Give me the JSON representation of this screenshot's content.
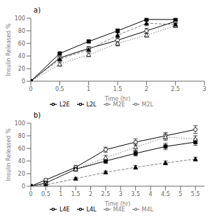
{
  "chart_data": [
    {
      "type": "line",
      "title": "a)",
      "x_label": "Time (hr)",
      "y_label": "Insulin Released %",
      "x": [
        0,
        0.5,
        1.0,
        1.5,
        2.0,
        2.5
      ],
      "xlim": [
        0,
        3
      ],
      "xticks": [
        0,
        0.5,
        1,
        1.5,
        2,
        2.5,
        3
      ],
      "ylim": [
        0,
        100
      ],
      "yticks": [
        0,
        20,
        40,
        60,
        80,
        100
      ],
      "grid": false,
      "legend": "bottom",
      "series": [
        {
          "name": "L2E",
          "color": "black",
          "line_style": "solid",
          "marker": "open circle",
          "values": [
            0,
            37,
            52,
            65,
            80,
            95
          ],
          "yerr": [
            0,
            3,
            3,
            4,
            4,
            3
          ]
        },
        {
          "name": "L2L",
          "color": "black",
          "line_style": "solid",
          "marker": "filled square",
          "values": [
            0,
            44,
            63,
            80,
            98,
            98
          ],
          "yerr": [
            0,
            2,
            2,
            3,
            2,
            2
          ]
        },
        {
          "name": "M2E",
          "color": "gray",
          "line_style": "dotted",
          "marker": "open triangle",
          "values": [
            0,
            27,
            42,
            60,
            73,
            88
          ],
          "yerr": [
            0,
            3,
            3,
            4,
            3,
            3
          ]
        },
        {
          "name": "M2L",
          "color": "gray",
          "line_style": "dashed",
          "marker": "filled triangle",
          "values": [
            0,
            35,
            50,
            73,
            92,
            90
          ],
          "yerr": [
            0,
            3,
            3,
            4,
            4,
            3
          ]
        }
      ]
    },
    {
      "type": "line",
      "title": "b)",
      "x_label": "Time (hr)",
      "y_label": "Insulin Released %",
      "x": [
        0,
        0.5,
        1.5,
        2.5,
        3.5,
        4.5,
        5.5
      ],
      "xlim": [
        0,
        5.8
      ],
      "xticks": [
        0,
        0.5,
        1,
        1.5,
        2,
        2.5,
        3,
        3.5,
        4,
        4.5,
        5,
        5.5
      ],
      "ylim": [
        0,
        100
      ],
      "yticks": [
        0,
        20,
        40,
        60,
        80,
        100
      ],
      "grid": false,
      "legend": "bottom",
      "series": [
        {
          "name": "L4E",
          "color": "black",
          "line_style": "solid",
          "marker": "open circle",
          "values": [
            0,
            10,
            30,
            58,
            70,
            80,
            90
          ],
          "yerr": [
            0,
            2,
            3,
            4,
            5,
            5,
            6
          ]
        },
        {
          "name": "L4L",
          "color": "black",
          "line_style": "solid",
          "marker": "filled square",
          "values": [
            0,
            5,
            27,
            40,
            52,
            63,
            70
          ],
          "yerr": [
            0,
            2,
            3,
            4,
            4,
            5,
            5
          ]
        },
        {
          "name": "M4E",
          "color": "gray",
          "line_style": "dotted",
          "marker": "open triangle",
          "values": [
            0,
            5,
            27,
            45,
            62,
            78,
            75
          ],
          "yerr": [
            0,
            2,
            3,
            4,
            5,
            5,
            5
          ]
        },
        {
          "name": "M4L",
          "color": "gray",
          "line_style": "dashed",
          "marker": "filled triangle",
          "values": [
            0,
            2,
            12,
            22,
            30,
            37,
            43
          ],
          "yerr": [
            0,
            1,
            2,
            2,
            3,
            3,
            3
          ]
        }
      ]
    }
  ]
}
